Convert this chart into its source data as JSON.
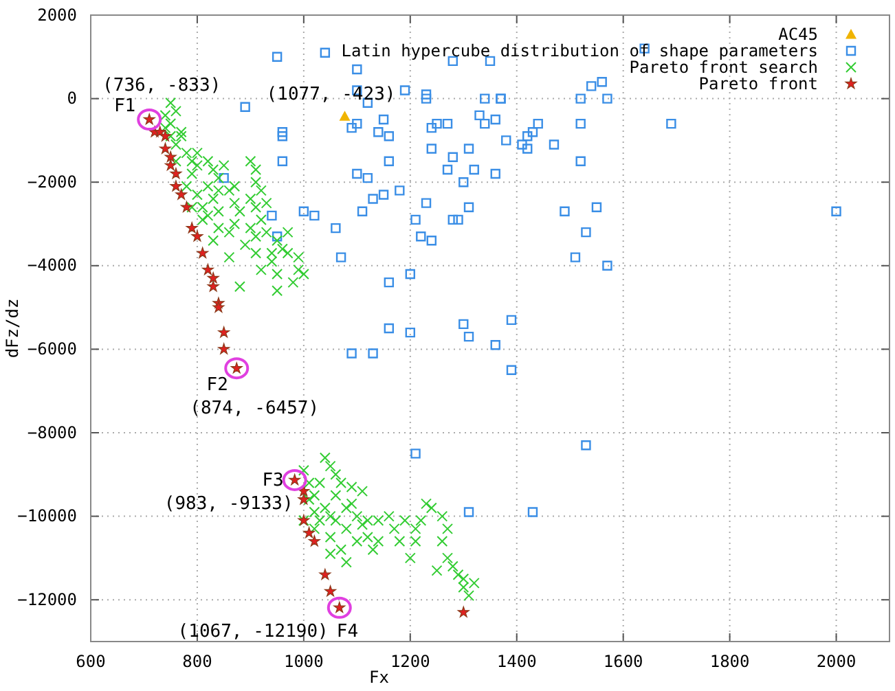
{
  "chart_data": {
    "type": "scatter",
    "xlabel": "Fx",
    "ylabel": "dFz/dz",
    "xlim": [
      600,
      2100
    ],
    "ylim": [
      -13000,
      2000
    ],
    "xticks": [
      600,
      800,
      1000,
      1200,
      1400,
      1600,
      1800,
      2000
    ],
    "yticks": [
      -12000,
      -10000,
      -8000,
      -6000,
      -4000,
      -2000,
      0,
      2000
    ],
    "grid": true,
    "legend": "top right",
    "series": [
      {
        "name": "AC45",
        "color": "#f0b400",
        "marker": "triangle",
        "x": [
          1077
        ],
        "values": [
          -423
        ]
      },
      {
        "name": "Latin hypercube distribution of shape parameters",
        "color": "#3a8ee6",
        "marker": "square",
        "x": [
          950,
          1040,
          1100,
          1100,
          1190,
          1230,
          1230,
          890,
          1120,
          1150,
          960,
          960,
          1100,
          1090,
          1140,
          1160,
          1240,
          1250,
          1270,
          1240,
          1280,
          1270,
          960,
          1160,
          850,
          1100,
          1120,
          1180,
          1150,
          1130,
          1230,
          1000,
          1020,
          1110,
          940,
          1210,
          1060,
          950,
          1220,
          1240,
          1070,
          1160,
          1200,
          1160,
          1200,
          1280,
          1280,
          1350,
          1640,
          1540,
          1560,
          1340,
          1370,
          1370,
          1520,
          1570,
          1690,
          1330,
          1340,
          1360,
          1440,
          1380,
          1520,
          1430,
          1420,
          1410,
          1420,
          1470,
          1310,
          1520,
          1320,
          1360,
          1300,
          1310,
          1290,
          1490,
          1550,
          1530,
          1510,
          1570,
          2000,
          1390,
          1300,
          1310,
          1360,
          1090,
          1130,
          1210,
          1390,
          1530,
          1310,
          1430
        ],
        "values": [
          1000,
          1100,
          700,
          200,
          200,
          100,
          0,
          -200,
          -100,
          -500,
          -800,
          -900,
          -600,
          -700,
          -800,
          -900,
          -700,
          -600,
          -600,
          -1200,
          -1400,
          -1700,
          -1500,
          -1500,
          -1900,
          -1800,
          -1900,
          -2200,
          -2300,
          -2400,
          -2500,
          -2700,
          -2800,
          -2700,
          -2800,
          -2900,
          -3100,
          -3300,
          -3300,
          -3400,
          -3800,
          -4400,
          -4200,
          -5500,
          -5600,
          -2900,
          900,
          900,
          1200,
          300,
          400,
          0,
          0,
          0,
          0,
          0,
          -600,
          -400,
          -600,
          -500,
          -600,
          -1000,
          -600,
          -800,
          -900,
          -1100,
          -1200,
          -1100,
          -1200,
          -1500,
          -1700,
          -1800,
          -2000,
          -2600,
          -2900,
          -2700,
          -2600,
          -3200,
          -3800,
          -4000,
          -2700,
          -5300,
          -5400,
          -5700,
          -5900,
          -6100,
          -6100,
          -8500,
          -6500,
          -8300,
          -9900,
          -9900
        ]
      },
      {
        "name": "Pareto front search",
        "color": "#33cc33",
        "marker": "cross",
        "x": [
          750,
          740,
          750,
          770,
          750,
          760,
          780,
          790,
          760,
          800,
          820,
          830,
          790,
          840,
          820,
          860,
          800,
          830,
          870,
          900,
          910,
          880,
          840,
          820,
          920,
          870,
          900,
          930,
          950,
          910,
          960,
          970,
          940,
          990,
          1000,
          980,
          950,
          910,
          860,
          890,
          900,
          910,
          910,
          920,
          930,
          810,
          790,
          840,
          860,
          830,
          880,
          950,
          990,
          920,
          940,
          970,
          870,
          850,
          780,
          810,
          770,
          760,
          740,
          800,
          840,
          1000,
          1010,
          1020,
          1040,
          1050,
          1060,
          1070,
          1060,
          1040,
          1020,
          1030,
          1050,
          1080,
          1090,
          1100,
          1060,
          1080,
          1110,
          1120,
          1140,
          1100,
          1070,
          1050,
          1020,
          1000,
          1120,
          1130,
          1160,
          1170,
          1180,
          1190,
          1210,
          1220,
          1230,
          1240,
          1210,
          1200,
          1260,
          1270,
          1260,
          1270,
          1280,
          1290,
          1300,
          1320,
          1300,
          1310,
          1250,
          1080,
          1140,
          1050,
          1090,
          1110,
          1010,
          1030
        ],
        "values": [
          -100,
          -400,
          -600,
          -800,
          -900,
          -1100,
          -1300,
          -1500,
          -1500,
          -1600,
          -1500,
          -1700,
          -1800,
          -1900,
          -2100,
          -2200,
          -2300,
          -2400,
          -2500,
          -2400,
          -2600,
          -2700,
          -2700,
          -2800,
          -2900,
          -3000,
          -3100,
          -3200,
          -3400,
          -3300,
          -3600,
          -3700,
          -3900,
          -4100,
          -4200,
          -4400,
          -4200,
          -3700,
          -3200,
          -3500,
          -1500,
          -1700,
          -2000,
          -2200,
          -2500,
          -2600,
          -2600,
          -3100,
          -3800,
          -3400,
          -4500,
          -4600,
          -3800,
          -4100,
          -3700,
          -3200,
          -2100,
          -1600,
          -2100,
          -2900,
          -900,
          -300,
          -700,
          -1300,
          -2200,
          -8900,
          -9200,
          -9500,
          -8600,
          -8800,
          -9000,
          -9200,
          -9500,
          -9800,
          -9900,
          -10100,
          -10000,
          -9800,
          -9700,
          -10000,
          -10100,
          -10300,
          -10200,
          -10100,
          -10100,
          -10600,
          -10800,
          -10500,
          -10300,
          -10100,
          -10500,
          -10800,
          -10000,
          -10300,
          -10600,
          -10100,
          -10300,
          -10100,
          -9700,
          -9800,
          -10600,
          -11000,
          -10000,
          -10300,
          -10600,
          -11000,
          -11200,
          -11400,
          -11500,
          -11600,
          -11700,
          -11900,
          -11300,
          -11100,
          -10600,
          -10900,
          -9300,
          -9400,
          -9600,
          -9200
        ]
      },
      {
        "name": "Pareto front",
        "color": "#e02020",
        "marker": "star",
        "x": [
          710,
          720,
          730,
          740,
          740,
          750,
          750,
          760,
          760,
          770,
          780,
          790,
          800,
          810,
          820,
          830,
          830,
          840,
          840,
          850,
          850,
          874,
          983,
          1000,
          1000,
          1000,
          1010,
          1020,
          1040,
          1050,
          1067,
          1300
        ],
        "values": [
          -500,
          -800,
          -800,
          -900,
          -1200,
          -1400,
          -1600,
          -1800,
          -2100,
          -2300,
          -2600,
          -3100,
          -3300,
          -3700,
          -4100,
          -4300,
          -4500,
          -4900,
          -5000,
          -5600,
          -6000,
          -6457,
          -9133,
          -9400,
          -9600,
          -10100,
          -10400,
          -10600,
          -11400,
          -11800,
          -12190,
          -12300
        ]
      }
    ],
    "annotations": [
      {
        "text": "(736, -833)",
        "x": 710,
        "y": -500
      },
      {
        "text": "F1",
        "x": 710,
        "y": -500
      },
      {
        "text": "(1077, -423)",
        "x": 1077,
        "y": -423
      },
      {
        "text": "F2",
        "x": 874,
        "y": -6457
      },
      {
        "text": "(874, -6457)",
        "x": 874,
        "y": -6457
      },
      {
        "text": "F3",
        "x": 983,
        "y": -9133
      },
      {
        "text": "(983, -9133)",
        "x": 983,
        "y": -9133
      },
      {
        "text": "(1067, -12190)",
        "x": 1067,
        "y": -12190
      },
      {
        "text": "F4",
        "x": 1067,
        "y": -12190
      }
    ]
  }
}
